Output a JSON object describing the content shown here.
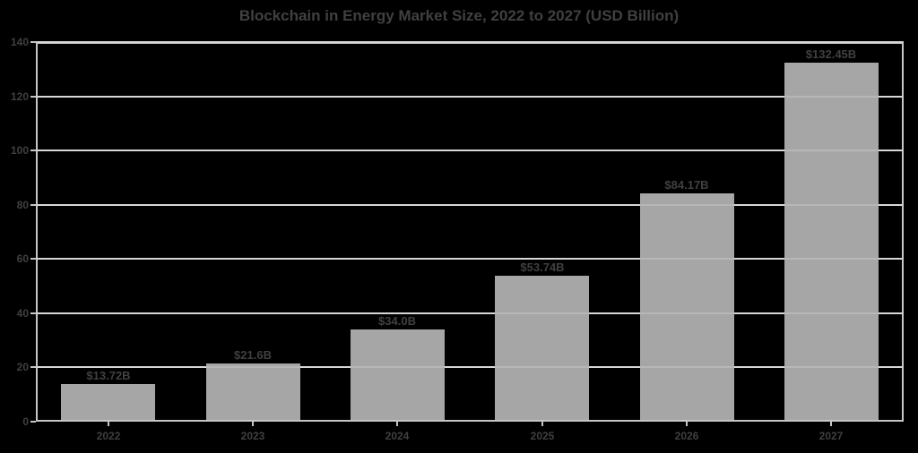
{
  "chart_data": {
    "type": "bar",
    "title": "Blockchain in Energy Market Size, 2022 to 2027 (USD Billion)",
    "categories": [
      "2022",
      "2023",
      "2024",
      "2025",
      "2026",
      "2027"
    ],
    "values": [
      13.72,
      21.6,
      34.0,
      53.74,
      84.17,
      132.45
    ],
    "bar_labels": [
      "$13.72B",
      "$21.6B",
      "$34.0B",
      "$53.74B",
      "$84.17B",
      "$132.45B"
    ],
    "xlabel": "",
    "ylabel": "",
    "ylim": [
      0,
      140
    ],
    "yticks": [
      0,
      20,
      40,
      60,
      80,
      100,
      120,
      140
    ],
    "grid": true,
    "legend": "none"
  },
  "colors": {
    "background": "#000000",
    "bar": "#a6a6a6",
    "gridline": "#cdcdcd",
    "plot_border": "#c6c6c6",
    "text": "#404040"
  }
}
